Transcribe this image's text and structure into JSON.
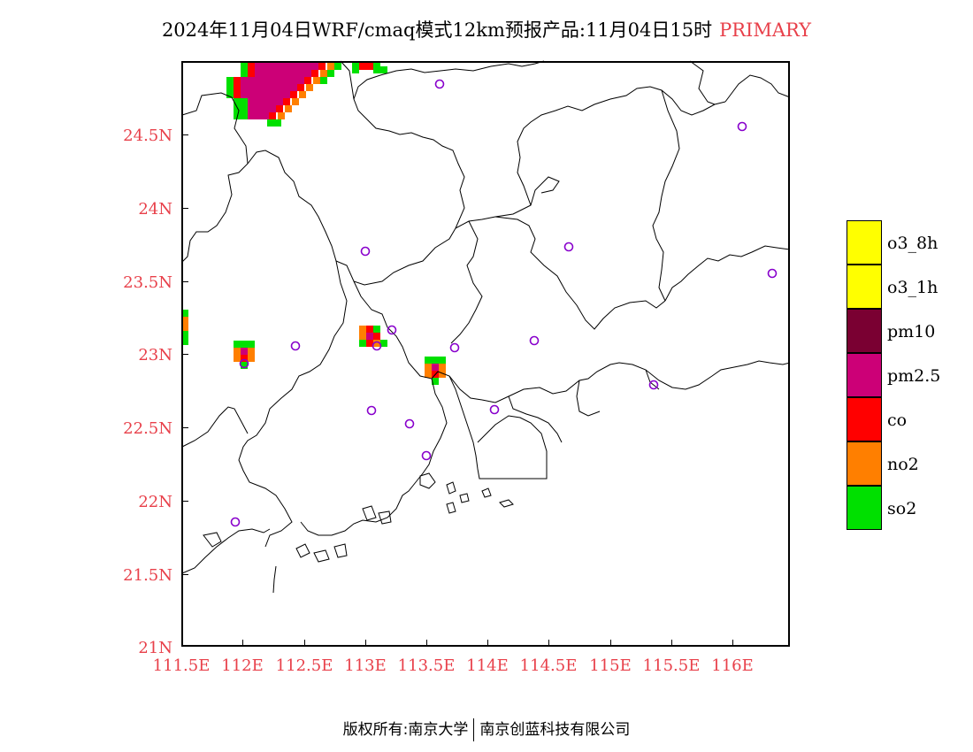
{
  "title": {
    "main": "2024年11月04日WRF/cmaq模式12km预报产品:11月04日15时",
    "tag": "PRIMARY"
  },
  "colors": {
    "tick_label": "#e8404a",
    "o3_8h": "#ffff00",
    "o3_1h": "#ffff00",
    "pm10": "#7a0032",
    "pm25": "#cc0077",
    "co": "#ff0000",
    "no2": "#ff7f00",
    "so2": "#00e000",
    "station": "#8800cc"
  },
  "axes": {
    "y_ticks": [
      "24.5N",
      "24N",
      "23.5N",
      "23N",
      "22.5N",
      "22N",
      "21.5N",
      "21N"
    ],
    "x_ticks": [
      "111.5E",
      "112E",
      "112.5E",
      "113E",
      "113.5E",
      "114E",
      "114.5E",
      "115E",
      "115.5E",
      "116E"
    ]
  },
  "legend": [
    {
      "label": "o3_8h",
      "color": "#ffff00"
    },
    {
      "label": "o3_1h",
      "color": "#ffff00"
    },
    {
      "label": "pm10",
      "color": "#7a0032"
    },
    {
      "label": "pm2.5",
      "color": "#cc0077"
    },
    {
      "label": "co",
      "color": "#ff0000"
    },
    {
      "label": "no2",
      "color": "#ff7f00"
    },
    {
      "label": "so2",
      "color": "#00e000"
    }
  ],
  "footer": {
    "left": "版权所有:南京大学",
    "right": "南京创蓝科技有限公司"
  }
}
